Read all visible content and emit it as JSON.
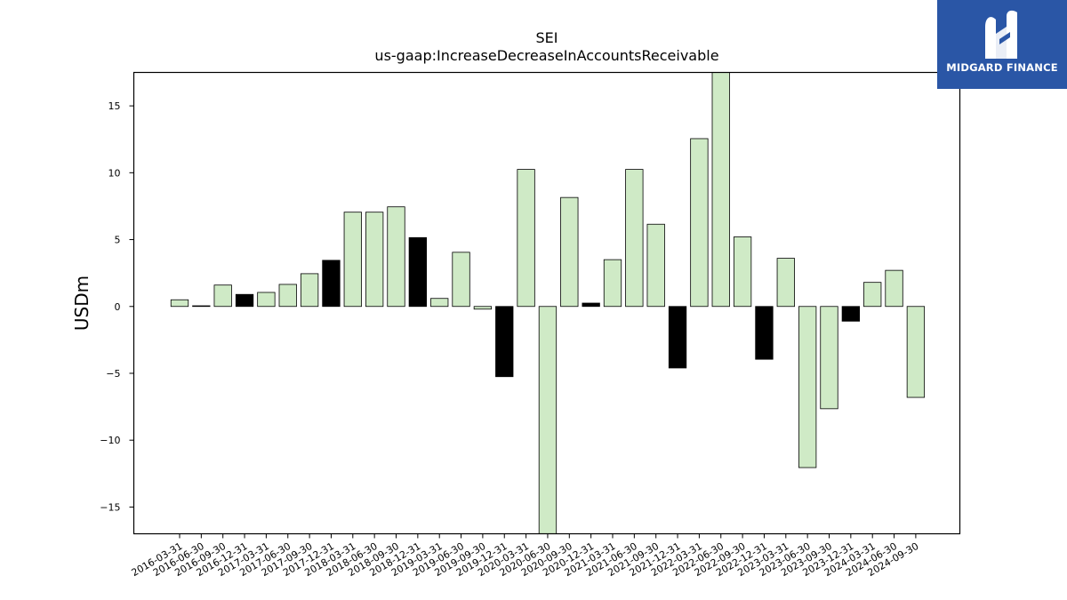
{
  "brand": {
    "name": "MIDGARD FINANCE",
    "color": "#2a56a6",
    "icon": "midgard-logo-icon"
  },
  "colors": {
    "positive_bar": "#cfeac6",
    "negative_bar": "#000000",
    "bar_edge": "#000000"
  },
  "chart_data": {
    "type": "bar",
    "title": "SEI",
    "subtitle": "us-gaap:IncreaseDecreaseInAccountsReceivable",
    "xlabel": "",
    "ylabel": "USDm",
    "ylim": [
      -17,
      17.5
    ],
    "yticks": [
      -15,
      -10,
      -5,
      0,
      5,
      10,
      15
    ],
    "grid": false,
    "categories": [
      "2016-03-31",
      "2016-06-30",
      "2016-09-30",
      "2016-12-31",
      "2017-03-31",
      "2017-06-30",
      "2017-09-30",
      "2017-12-31",
      "2018-03-31",
      "2018-06-30",
      "2018-09-30",
      "2018-12-31",
      "2019-03-31",
      "2019-06-30",
      "2019-09-30",
      "2019-12-31",
      "2020-03-31",
      "2020-06-30",
      "2020-09-30",
      "2020-12-31",
      "2021-03-31",
      "2021-06-30",
      "2021-09-30",
      "2021-12-31",
      "2022-03-31",
      "2022-06-30",
      "2022-09-30",
      "2022-12-31",
      "2023-03-31",
      "2023-06-30",
      "2023-09-30",
      "2023-12-31",
      "2024-03-31",
      "2024-06-30",
      "2024-09-30"
    ],
    "values": [
      0.5,
      0.05,
      1.6,
      0.9,
      1.05,
      1.65,
      2.45,
      3.45,
      7.05,
      7.05,
      7.45,
      5.15,
      0.6,
      4.05,
      -0.2,
      -5.25,
      10.25,
      -17.0,
      8.15,
      0.25,
      3.5,
      10.25,
      6.15,
      -4.6,
      12.55,
      17.5,
      5.2,
      -3.95,
      3.6,
      -12.05,
      -7.65,
      -1.1,
      1.8,
      2.7,
      -6.8
    ],
    "bar_style": [
      "light",
      "dark",
      "light",
      "dark",
      "light",
      "light",
      "light",
      "dark",
      "light",
      "light",
      "light",
      "dark",
      "light",
      "light",
      "light",
      "dark",
      "light",
      "light",
      "light",
      "dark",
      "light",
      "light",
      "light",
      "dark",
      "light",
      "light",
      "light",
      "dark",
      "light",
      "light",
      "light",
      "dark",
      "light",
      "light",
      "light"
    ]
  }
}
